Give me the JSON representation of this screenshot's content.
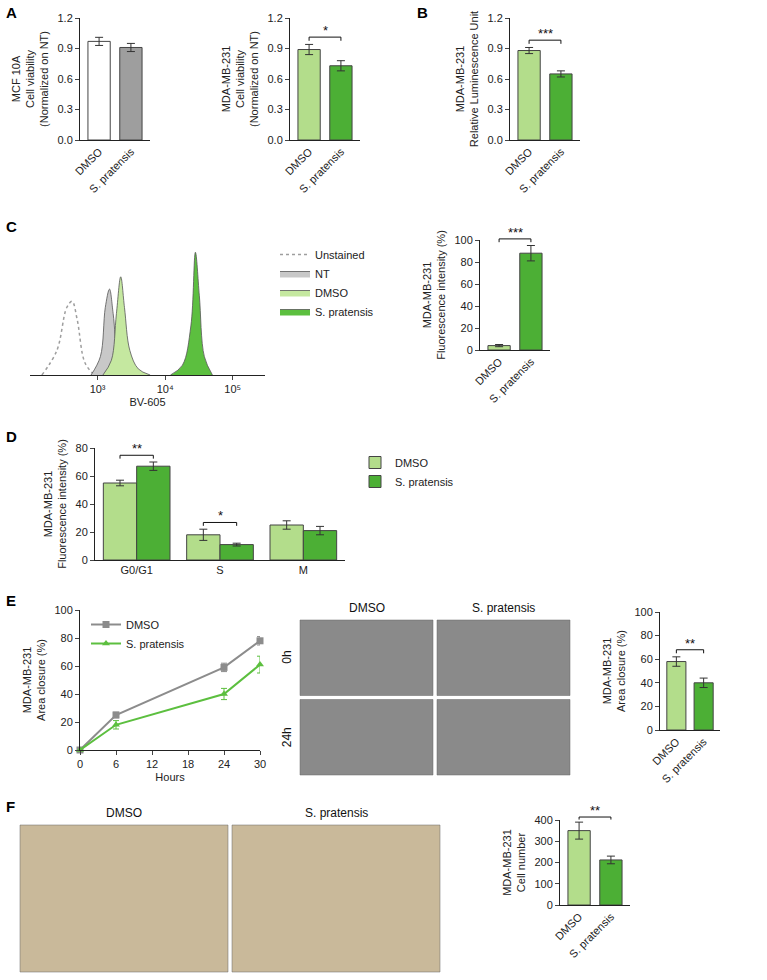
{
  "chart_data": [
    {
      "panel": "A",
      "type": "bar",
      "ylabel": [
        "MCF 10A",
        "Cell viability",
        "(Normalized on NT)"
      ],
      "categories": [
        "DMSO",
        "S. pratensis"
      ],
      "values": [
        0.97,
        0.91
      ],
      "errors": [
        0.04,
        0.04
      ],
      "colors": [
        "#ffffff",
        "#9e9e9e"
      ],
      "ylim": [
        0,
        1.2
      ],
      "yticks": [
        {
          "value": 0,
          "label": "0.0"
        },
        0.3,
        0.6,
        0.9,
        1.2
      ]
    },
    {
      "type": "bar",
      "ylabel": [
        "MDA-MB-231",
        "Cell viability",
        "(Normalized on NT)"
      ],
      "categories": [
        "DMSO",
        "S. pratensis"
      ],
      "values": [
        0.89,
        0.73
      ],
      "errors": [
        0.05,
        0.05
      ],
      "colors": [
        "#b3dd8b",
        "#4caf35"
      ],
      "ylim": [
        0,
        1.2
      ],
      "yticks": [
        {
          "value": 0,
          "label": "0.0"
        },
        0.3,
        0.6,
        0.9,
        1.2
      ],
      "significance": [
        {
          "between": [
            "DMSO",
            "S. pratensis"
          ],
          "text": "*"
        }
      ]
    },
    {
      "panel": "B",
      "type": "bar",
      "ylabel": [
        "MDA-MB-231",
        "Relative Luminescence Unit"
      ],
      "categories": [
        "DMSO",
        "S. pratensis"
      ],
      "values": [
        0.88,
        0.65
      ],
      "errors": [
        0.03,
        0.03
      ],
      "colors": [
        "#b3dd8b",
        "#4caf35"
      ],
      "ylim": [
        0,
        1.2
      ],
      "yticks": [
        {
          "value": 0,
          "label": "0.0"
        },
        0.3,
        0.6,
        0.9,
        1.2
      ],
      "significance": [
        {
          "between": [
            "DMSO",
            "S. pratensis"
          ],
          "text": "***"
        }
      ]
    },
    {
      "panel": "C",
      "type": "area",
      "xlabel": "BV-605",
      "log": "x",
      "tick_labels": "x",
      "legend": "right",
      "xlim": [
        100,
        300000
      ],
      "ylim": [
        0,
        110
      ],
      "xticks": [
        {
          "value": 1000,
          "label": "10³"
        },
        {
          "value": 10000,
          "label": "10⁴"
        },
        {
          "value": 100000,
          "label": "10⁵"
        }
      ],
      "series": [
        {
          "name": "Unstained",
          "type": "line",
          "line_style": "dotted",
          "color": "#9e9e9e",
          "x": [
            150,
            250,
            350,
            420,
            500,
            650,
            900
          ],
          "values": [
            0,
            20,
            55,
            60,
            45,
            10,
            0
          ]
        },
        {
          "name": "NT",
          "type": "area",
          "color": "#c8c8c8",
          "x": [
            800,
            1100,
            1300,
            1500,
            1700,
            2000,
            2600
          ],
          "values": [
            0,
            15,
            55,
            70,
            50,
            15,
            0
          ]
        },
        {
          "name": "DMSO",
          "type": "area",
          "color": "#c5e8a0",
          "x": [
            1200,
            1600,
            1900,
            2200,
            2500,
            3000,
            4000,
            6000
          ],
          "values": [
            0,
            12,
            50,
            80,
            55,
            20,
            5,
            0
          ]
        },
        {
          "name": "S. pratensis",
          "type": "area",
          "color": "#5cbf3f",
          "x": [
            12000,
            18000,
            24000,
            28000,
            32000,
            38000,
            50000
          ],
          "values": [
            0,
            8,
            40,
            100,
            65,
            15,
            0
          ]
        }
      ]
    },
    {
      "type": "bar",
      "ylabel": [
        "MDA-MB-231",
        "Fluorescence intensity (%)"
      ],
      "categories": [
        "DMSO",
        "S. pratensis"
      ],
      "values": [
        4,
        88
      ],
      "errors": [
        1,
        7
      ],
      "colors": [
        "#b3dd8b",
        "#4caf35"
      ],
      "ylim": [
        0,
        100
      ],
      "yticks": [
        0,
        20,
        40,
        60,
        80,
        100
      ],
      "significance": [
        {
          "between": [
            "DMSO",
            "S. pratensis"
          ],
          "text": "***"
        }
      ]
    },
    {
      "panel": "D",
      "type": "bar",
      "ylabel": [
        "MDA-MB-231",
        "Fluorescence intensity (%)"
      ],
      "legend": "right",
      "categories": [
        "G0/G1",
        "S",
        "M"
      ],
      "ylim": [
        0,
        80
      ],
      "yticks": [
        0,
        20,
        40,
        60,
        80
      ],
      "series": [
        {
          "name": "DMSO",
          "color": "#b3dd8b",
          "values": [
            55,
            18,
            25
          ],
          "errors": [
            2,
            4,
            3
          ]
        },
        {
          "name": "S. pratensis",
          "color": "#4caf35",
          "values": [
            67,
            11,
            21
          ],
          "errors": [
            3,
            1,
            3
          ]
        }
      ],
      "significance": [
        {
          "category": "G0/G1",
          "text": "**"
        },
        {
          "category": "S",
          "text": "*"
        }
      ]
    },
    {
      "panel": "E",
      "type": "line",
      "ylabel": [
        "MDA-MB-231",
        "Area closure (%)"
      ],
      "xlabel": "Hours",
      "legend": "top left",
      "x": [
        0,
        6,
        24,
        30
      ],
      "xlim": [
        0,
        30
      ],
      "xticks": [
        0,
        6,
        12,
        18,
        24,
        30
      ],
      "ylim": [
        0,
        100
      ],
      "yticks": [
        0,
        20,
        40,
        60,
        80,
        100
      ],
      "series": [
        {
          "name": "DMSO",
          "color": "#8c8c8c",
          "marker": "square",
          "values": [
            0,
            25,
            59,
            78
          ],
          "errors": [
            0,
            2,
            3,
            3
          ]
        },
        {
          "name": "S. pratensis",
          "color": "#5cbf3f",
          "marker": "triangle-up",
          "values": [
            0,
            18,
            40,
            61
          ],
          "errors": [
            0,
            3,
            4,
            6
          ]
        }
      ]
    },
    {
      "type": "image",
      "color": "#8a8a8a",
      "columns": [
        "DMSO",
        "S. pratensis"
      ],
      "rows": [
        "0h",
        "24h"
      ]
    },
    {
      "type": "bar",
      "ylabel": [
        "MDA-MB-231",
        "Area closure (%)"
      ],
      "categories": [
        "DMSO",
        "S. pratensis"
      ],
      "values": [
        58,
        40
      ],
      "errors": [
        4,
        4
      ],
      "colors": [
        "#b3dd8b",
        "#4caf35"
      ],
      "ylim": [
        0,
        100
      ],
      "yticks": [
        0,
        20,
        40,
        60,
        80,
        100
      ],
      "significance": [
        {
          "between": [
            "DMSO",
            "S. pratensis"
          ],
          "text": "**"
        }
      ]
    },
    {
      "panel": "F",
      "type": "image",
      "color": "#c9b99a",
      "columns": [
        "DMSO",
        "S. pratensis"
      ]
    },
    {
      "type": "bar",
      "ylabel": [
        "MDA-MB-231",
        "Cell number"
      ],
      "categories": [
        "DMSO",
        "S. pratensis"
      ],
      "values": [
        350,
        212
      ],
      "errors": [
        40,
        18
      ],
      "colors": [
        "#b3dd8b",
        "#4caf35"
      ],
      "ylim": [
        0,
        400
      ],
      "yticks": [
        0,
        100,
        200,
        300,
        400
      ],
      "significance": [
        {
          "between": [
            "DMSO",
            "S. pratensis"
          ],
          "text": "**"
        }
      ]
    }
  ]
}
